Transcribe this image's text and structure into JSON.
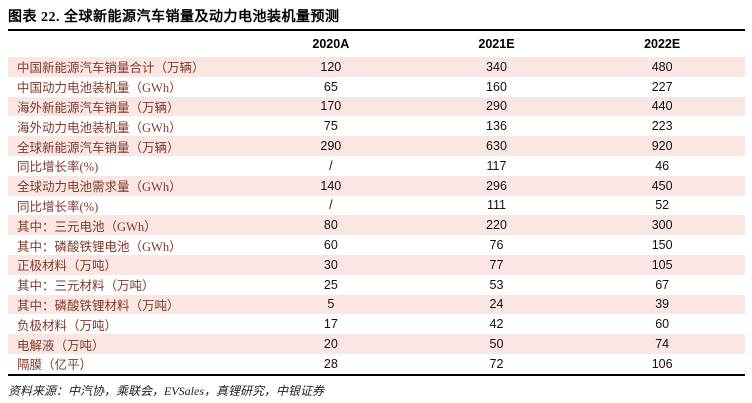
{
  "title": "图表 22. 全球新能源汽车销量及动力电池装机量预测",
  "table": {
    "columns": [
      "2020A",
      "2021E",
      "2022E"
    ],
    "rows": [
      {
        "label": "中国新能源汽车销量合计（万辆）",
        "values": [
          "120",
          "340",
          "480"
        ]
      },
      {
        "label": "中国动力电池装机量（GWh）",
        "values": [
          "65",
          "160",
          "227"
        ]
      },
      {
        "label": "海外新能源汽车销量（万辆）",
        "values": [
          "170",
          "290",
          "440"
        ]
      },
      {
        "label": "海外动力电池装机量（GWh）",
        "values": [
          "75",
          "136",
          "223"
        ]
      },
      {
        "label": "全球新能源汽车销量（万辆）",
        "values": [
          "290",
          "630",
          "920"
        ]
      },
      {
        "label": "同比增长率(%)",
        "values": [
          "/",
          "117",
          "46"
        ]
      },
      {
        "label": "全球动力电池需求量（GWh）",
        "values": [
          "140",
          "296",
          "450"
        ]
      },
      {
        "label": "同比增长率(%)",
        "values": [
          "/",
          "111",
          "52"
        ]
      },
      {
        "label": "其中：三元电池（GWh）",
        "values": [
          "80",
          "220",
          "300"
        ]
      },
      {
        "label": "其中：磷酸铁锂电池（GWh）",
        "values": [
          "60",
          "76",
          "150"
        ]
      },
      {
        "label": "正极材料（万吨）",
        "values": [
          "30",
          "77",
          "105"
        ]
      },
      {
        "label": "其中：三元材料（万吨）",
        "values": [
          "25",
          "53",
          "67"
        ]
      },
      {
        "label": "其中：磷酸铁锂材料（万吨）",
        "values": [
          "5",
          "24",
          "39"
        ]
      },
      {
        "label": "负极材料（万吨）",
        "values": [
          "17",
          "42",
          "60"
        ]
      },
      {
        "label": "电解液（万吨）",
        "values": [
          "20",
          "50",
          "74"
        ]
      },
      {
        "label": "隔膜（亿平）",
        "values": [
          "28",
          "72",
          "106"
        ]
      }
    ]
  },
  "footer": {
    "source": "资料来源：中汽协，乘联会，EVSales，真锂研究，中银证券"
  },
  "colors": {
    "row_shade": "#FAE7E3",
    "label_text": "#7E3A2B",
    "rule": "#000000"
  }
}
